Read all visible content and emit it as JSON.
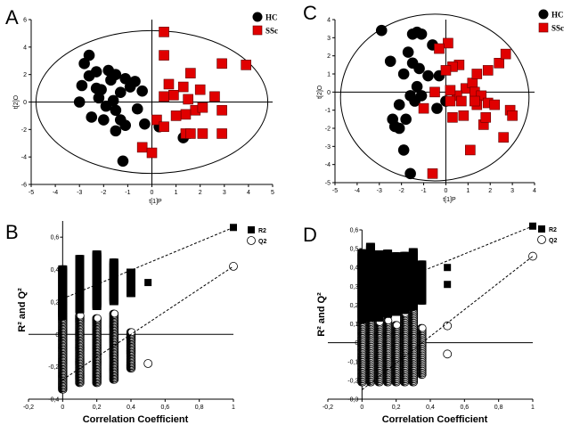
{
  "figure": {
    "panel_labels": [
      "A",
      "B",
      "C",
      "D"
    ]
  },
  "chart_data": [
    {
      "panel": "A",
      "type": "scatter",
      "title": "",
      "xlabel": "t[1]P",
      "ylabel": "t[2]O",
      "xlim": [
        -5,
        5
      ],
      "ylim": [
        -6,
        6
      ],
      "xticks": [
        -5,
        -4,
        -3,
        -2,
        -1,
        0,
        1,
        2,
        3,
        4,
        5
      ],
      "yticks": [
        -6,
        -4,
        -2,
        0,
        2,
        4,
        6
      ],
      "grid": false,
      "ellipse": {
        "cx": 0,
        "cy": 0,
        "rx": 4.8,
        "ry": 5.2
      },
      "legend": [
        {
          "label": "HC",
          "marker": "circle",
          "color": "#000000"
        },
        {
          "label": "SSc",
          "marker": "square",
          "color": "#e00000"
        }
      ],
      "series": [
        {
          "name": "HC",
          "points": [
            [
              -2.6,
              3.4
            ],
            [
              -2.8,
              2.8
            ],
            [
              -2.3,
              2.2
            ],
            [
              -2.6,
              1.9
            ],
            [
              -2.9,
              1.2
            ],
            [
              -2.3,
              1.0
            ],
            [
              -1.8,
              2.3
            ],
            [
              -1.5,
              2.0
            ],
            [
              -1.1,
              1.7
            ],
            [
              -0.9,
              1.1
            ],
            [
              -1.7,
              1.6
            ],
            [
              -2.1,
              0.9
            ],
            [
              -0.7,
              1.5
            ],
            [
              -0.4,
              0.8
            ],
            [
              -1.6,
              0.1
            ],
            [
              -3.0,
              0.0
            ],
            [
              -1.9,
              -0.3
            ],
            [
              -1.5,
              -0.6
            ],
            [
              -2.5,
              -1.1
            ],
            [
              -2.0,
              -1.3
            ],
            [
              -1.3,
              -1.3
            ],
            [
              -1.5,
              -2.1
            ],
            [
              -1.1,
              -1.7
            ],
            [
              -0.3,
              -1.6
            ],
            [
              1.3,
              -2.6
            ],
            [
              -1.2,
              -4.3
            ],
            [
              0.3,
              -1.8
            ],
            [
              -0.6,
              -0.5
            ],
            [
              -2.2,
              0.3
            ],
            [
              -1.3,
              0.7
            ]
          ]
        },
        {
          "name": "SSc",
          "points": [
            [
              0.5,
              5.1
            ],
            [
              0.5,
              3.4
            ],
            [
              1.6,
              2.1
            ],
            [
              0.7,
              1.3
            ],
            [
              1.3,
              1.1
            ],
            [
              2.0,
              0.9
            ],
            [
              0.9,
              0.5
            ],
            [
              0.5,
              0.4
            ],
            [
              1.5,
              0.2
            ],
            [
              2.6,
              0.4
            ],
            [
              1.8,
              -0.6
            ],
            [
              1.4,
              -0.9
            ],
            [
              1.0,
              -1.0
            ],
            [
              2.1,
              -0.4
            ],
            [
              2.9,
              -0.6
            ],
            [
              0.2,
              -1.3
            ],
            [
              0.5,
              -1.8
            ],
            [
              1.4,
              -2.3
            ],
            [
              1.6,
              -2.3
            ],
            [
              2.1,
              -2.3
            ],
            [
              2.9,
              -2.3
            ],
            [
              -0.4,
              -3.3
            ],
            [
              0.0,
              -3.7
            ],
            [
              2.9,
              2.8
            ],
            [
              3.9,
              2.7
            ]
          ]
        }
      ]
    },
    {
      "panel": "C",
      "type": "scatter",
      "title": "",
      "xlabel": "t[1]P",
      "ylabel": "t[2]O",
      "xlim": [
        -5,
        4
      ],
      "ylim": [
        -5,
        4
      ],
      "xticks": [
        -5,
        -4,
        -3,
        -2,
        -1,
        0,
        1,
        2,
        3,
        4
      ],
      "yticks": [
        -5,
        -4,
        -3,
        -2,
        -1,
        0,
        1,
        2,
        3,
        4
      ],
      "grid": false,
      "ellipse": {
        "cx": -0.5,
        "cy": -0.3,
        "rx": 4.25,
        "ry": 4.6
      },
      "legend": [
        {
          "label": "HC",
          "marker": "circle",
          "color": "#000000"
        },
        {
          "label": "SSc",
          "marker": "square",
          "color": "#e00000"
        }
      ],
      "series": [
        {
          "name": "HC",
          "points": [
            [
              -2.9,
              3.4
            ],
            [
              -1.5,
              3.2
            ],
            [
              -1.3,
              3.3
            ],
            [
              -1.1,
              3.2
            ],
            [
              -1.7,
              2.2
            ],
            [
              -0.6,
              2.6
            ],
            [
              -2.5,
              1.7
            ],
            [
              -1.5,
              1.6
            ],
            [
              -1.9,
              1.0
            ],
            [
              -1.2,
              1.3
            ],
            [
              -0.8,
              0.9
            ],
            [
              -1.3,
              0.3
            ],
            [
              -1.6,
              -0.2
            ],
            [
              -1.4,
              -0.5
            ],
            [
              -2.1,
              -0.7
            ],
            [
              -2.4,
              -1.5
            ],
            [
              -1.8,
              -1.5
            ],
            [
              -2.3,
              -1.9
            ],
            [
              -2.1,
              -2.0
            ],
            [
              -1.9,
              -3.2
            ],
            [
              -1.6,
              -4.5
            ],
            [
              0.0,
              -0.5
            ],
            [
              -0.3,
              0.9
            ],
            [
              -1.1,
              -0.2
            ],
            [
              -0.4,
              -0.9
            ]
          ]
        },
        {
          "name": "SSc",
          "points": [
            [
              0.1,
              2.7
            ],
            [
              -0.3,
              2.4
            ],
            [
              0.6,
              1.5
            ],
            [
              0.3,
              1.4
            ],
            [
              0.0,
              1.2
            ],
            [
              0.9,
              0.2
            ],
            [
              1.2,
              0.5
            ],
            [
              0.5,
              -0.2
            ],
            [
              0.2,
              0.1
            ],
            [
              -0.5,
              0.0
            ],
            [
              0.2,
              -0.5
            ],
            [
              0.7,
              -0.5
            ],
            [
              1.3,
              0.0
            ],
            [
              1.6,
              -0.2
            ],
            [
              1.9,
              1.2
            ],
            [
              2.4,
              1.6
            ],
            [
              2.7,
              2.1
            ],
            [
              1.9,
              -0.6
            ],
            [
              1.4,
              -0.7
            ],
            [
              1.3,
              -0.5
            ],
            [
              2.2,
              -0.7
            ],
            [
              2.9,
              -1.0
            ],
            [
              3.0,
              -1.3
            ],
            [
              -1.0,
              -0.9
            ],
            [
              1.4,
              1.0
            ],
            [
              2.6,
              -2.5
            ],
            [
              1.1,
              -3.2
            ],
            [
              -0.6,
              -4.5
            ],
            [
              0.3,
              -1.4
            ],
            [
              0.8,
              -1.3
            ],
            [
              1.7,
              -1.8
            ],
            [
              1.8,
              -1.4
            ]
          ]
        }
      ]
    },
    {
      "panel": "B",
      "type": "scatter",
      "title": "",
      "xlabel": "Correlation Coefficient",
      "ylabel": "R² and Q²",
      "xlim": [
        -0.2,
        1.0
      ],
      "ylim": [
        -0.4,
        0.7
      ],
      "xticks": [
        "-0,2",
        "0",
        "0,2",
        "0,4",
        "0,6",
        "0,8",
        "1"
      ],
      "yticks": [
        "-0,4",
        "-0,2",
        "0",
        "0,2",
        "0,4",
        "0,6"
      ],
      "legend": [
        {
          "label": "R2",
          "marker": "square",
          "color": "#000000"
        },
        {
          "label": "Q2",
          "marker": "open-circle",
          "color": "#000000"
        }
      ],
      "series": [
        {
          "name": "R2",
          "columns": [
            {
              "x": 0.0,
              "min": 0.11,
              "max": 0.41
            },
            {
              "x": 0.1,
              "min": 0.15,
              "max": 0.47
            },
            {
              "x": 0.2,
              "min": 0.17,
              "max": 0.5
            },
            {
              "x": 0.3,
              "min": 0.2,
              "max": 0.45
            },
            {
              "x": 0.4,
              "min": 0.25,
              "max": 0.39
            }
          ],
          "extra_points": [
            [
              0.5,
              0.32
            ],
            [
              1.0,
              0.66
            ]
          ]
        },
        {
          "name": "Q2",
          "columns": [
            {
              "x": 0.0,
              "min": -0.34,
              "max": 0.2
            },
            {
              "x": 0.1,
              "min": -0.3,
              "max": 0.12
            },
            {
              "x": 0.2,
              "min": -0.3,
              "max": 0.1
            },
            {
              "x": 0.3,
              "min": -0.28,
              "max": 0.13
            },
            {
              "x": 0.4,
              "min": -0.21,
              "max": 0.02
            }
          ],
          "extra_points": [
            [
              0.5,
              -0.18
            ],
            [
              1.0,
              0.42
            ]
          ]
        }
      ],
      "regression_lines": [
        {
          "series": "R2",
          "from": [
            0.0,
            0.22
          ],
          "to": [
            1.0,
            0.66
          ]
        },
        {
          "series": "Q2",
          "from": [
            0.0,
            -0.28
          ],
          "to": [
            1.0,
            0.42
          ]
        }
      ]
    },
    {
      "panel": "D",
      "type": "scatter",
      "title": "",
      "xlabel": "Correlation Coefficient",
      "ylabel": "R² and Q²",
      "xlim": [
        -0.2,
        1.0
      ],
      "ylim": [
        -0.3,
        0.6
      ],
      "xticks": [
        "-0,2",
        "0",
        "0,2",
        "0,4",
        "0,6",
        "0,8",
        "1"
      ],
      "yticks": [
        "-0,3",
        "-0,2",
        "-0,1",
        "0",
        "0,1",
        "0,2",
        "0,3",
        "0,4",
        "0,5",
        "0,6"
      ],
      "legend": [
        {
          "label": "R2",
          "marker": "square",
          "color": "#000000"
        },
        {
          "label": "Q2",
          "marker": "open-circle",
          "color": "#000000"
        }
      ],
      "series": [
        {
          "name": "R2",
          "columns": [
            {
              "x": 0.0,
              "min": 0.12,
              "max": 0.48
            },
            {
              "x": 0.05,
              "min": 0.13,
              "max": 0.52
            },
            {
              "x": 0.1,
              "min": 0.13,
              "max": 0.48
            },
            {
              "x": 0.15,
              "min": 0.15,
              "max": 0.48
            },
            {
              "x": 0.2,
              "min": 0.16,
              "max": 0.47
            },
            {
              "x": 0.25,
              "min": 0.17,
              "max": 0.47
            },
            {
              "x": 0.3,
              "min": 0.19,
              "max": 0.49
            },
            {
              "x": 0.35,
              "min": 0.22,
              "max": 0.42
            }
          ],
          "extra_points": [
            [
              0.5,
              0.4
            ],
            [
              0.5,
              0.31
            ],
            [
              1.0,
              0.62
            ]
          ]
        },
        {
          "name": "Q2",
          "columns": [
            {
              "x": 0.0,
              "min": -0.21,
              "max": 0.12
            },
            {
              "x": 0.05,
              "min": -0.21,
              "max": 0.14
            },
            {
              "x": 0.1,
              "min": -0.21,
              "max": 0.11
            },
            {
              "x": 0.15,
              "min": -0.21,
              "max": 0.12
            },
            {
              "x": 0.2,
              "min": -0.21,
              "max": 0.1
            },
            {
              "x": 0.25,
              "min": -0.21,
              "max": 0.16
            },
            {
              "x": 0.3,
              "min": -0.21,
              "max": 0.3
            },
            {
              "x": 0.35,
              "min": -0.17,
              "max": 0.08
            }
          ],
          "extra_points": [
            [
              0.5,
              0.09
            ],
            [
              0.5,
              -0.06
            ],
            [
              1.0,
              0.46
            ]
          ]
        }
      ],
      "regression_lines": [
        {
          "series": "R2",
          "from": [
            0.0,
            0.25
          ],
          "to": [
            1.0,
            0.62
          ]
        },
        {
          "series": "Q2",
          "from": [
            0.0,
            -0.25
          ],
          "to": [
            1.0,
            0.46
          ]
        }
      ]
    }
  ]
}
